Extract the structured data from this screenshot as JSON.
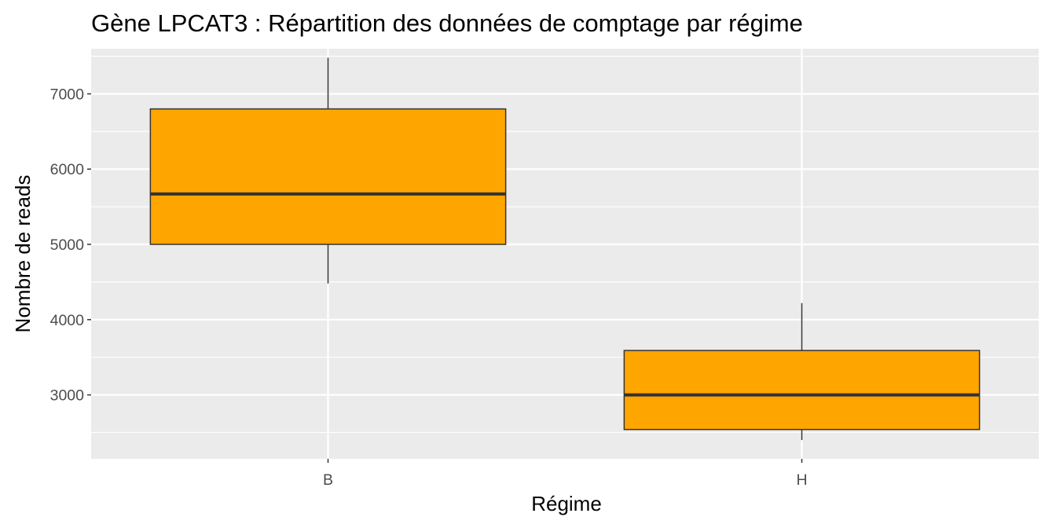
{
  "chart_data": {
    "type": "box",
    "title": "Gène LPCAT3 : Répartition des données de comptage par régime",
    "xlabel": "Régime",
    "ylabel": "Nombre de reads",
    "categories": [
      "B",
      "H"
    ],
    "ylim": [
      2150,
      7600
    ],
    "y_ticks": [
      3000,
      4000,
      5000,
      6000,
      7000
    ],
    "grid": true,
    "fill_color": "#FFA500",
    "panel_background": "#EBEBEB",
    "boxes": [
      {
        "category": "B",
        "whisker_low": 4480,
        "q1": 5000,
        "median": 5670,
        "q3": 6800,
        "whisker_high": 7480
      },
      {
        "category": "H",
        "whisker_low": 2400,
        "q1": 2540,
        "median": 3000,
        "q3": 3590,
        "whisker_high": 4220
      }
    ]
  }
}
